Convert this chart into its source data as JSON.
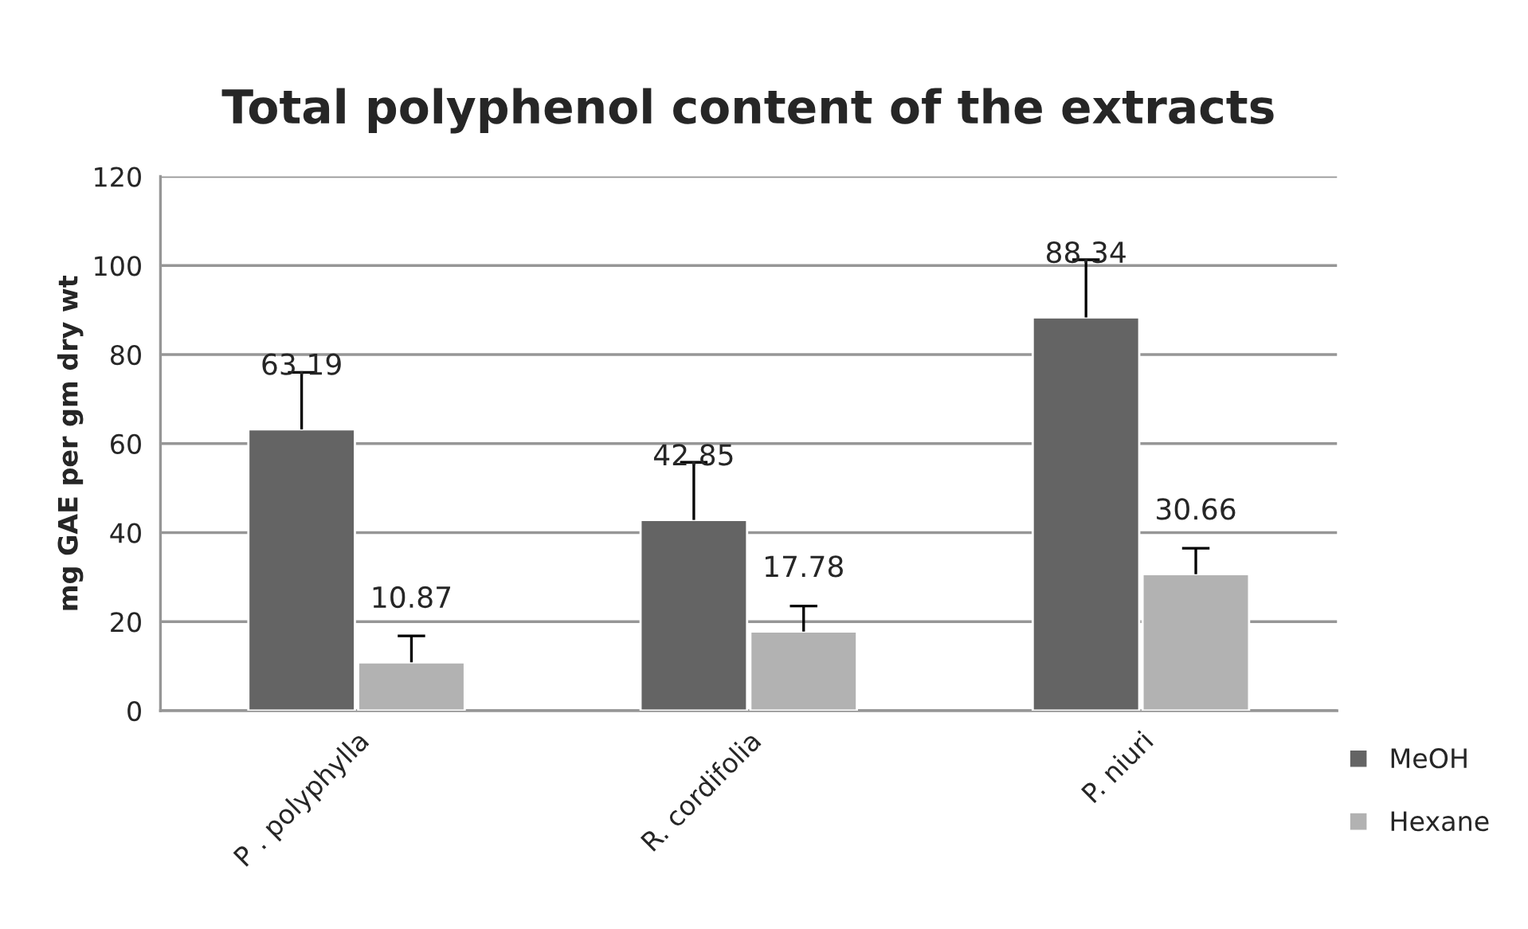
{
  "chart_data": {
    "type": "bar",
    "title": "Total polyphenol content of the extracts",
    "ylabel": "mg GAE per gm dry wt",
    "categories": [
      "P . polyphylla",
      "R. cordifolia",
      "P. niuri"
    ],
    "series": [
      {
        "name": "MeOH",
        "color": "#646464",
        "values": [
          63.19,
          42.85,
          88.34
        ],
        "errors": [
          [
            63.19,
            76.0
          ],
          [
            42.85,
            55.8
          ],
          [
            88.34,
            101.3
          ]
        ]
      },
      {
        "name": "Hexane",
        "color": "#b2b2b2",
        "values": [
          10.87,
          17.78,
          30.66
        ],
        "errors": [
          [
            10.87,
            16.8
          ],
          [
            17.78,
            23.5
          ],
          [
            30.66,
            36.5
          ]
        ]
      }
    ],
    "ylim": [
      0,
      120
    ],
    "yticks": [
      0,
      20,
      40,
      60,
      80,
      100,
      120
    ],
    "grid": "y",
    "legend": "bottom right",
    "data_labels": true
  }
}
